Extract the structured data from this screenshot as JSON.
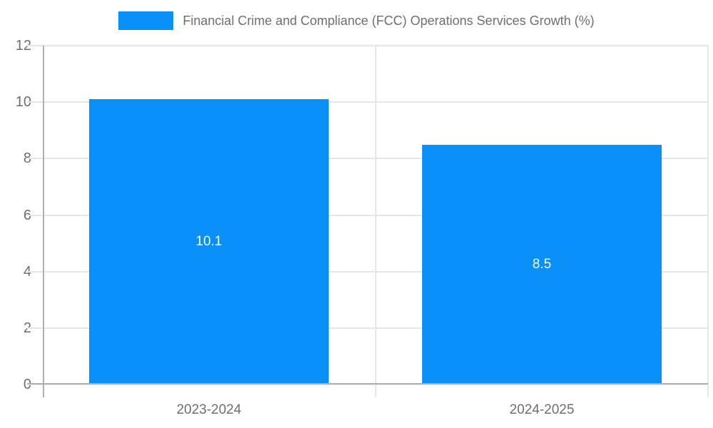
{
  "chart_data": {
    "type": "bar",
    "title": "",
    "legend": "Financial Crime and Compliance (FCC) Operations Services Growth (%)",
    "legend_position": "top",
    "categories": [
      "2023-2024",
      "2024-2025"
    ],
    "values": [
      10.1,
      8.5
    ],
    "value_labels": [
      "10.1",
      "8.5"
    ],
    "bar_label_position": "center",
    "xlabel": "",
    "ylabel": "",
    "ylim": [
      0,
      12
    ],
    "yticks": [
      0,
      2,
      4,
      6,
      8,
      10,
      12
    ],
    "grid": true,
    "colors": {
      "bar": "#0890f8",
      "grid": "#e6e6e6",
      "axis": "#b0b0b0",
      "tick_text": "#6e6e6e",
      "legend_text": "#6e6e6e",
      "value_label_text": "#ffffff",
      "background": "#ffffff"
    }
  }
}
